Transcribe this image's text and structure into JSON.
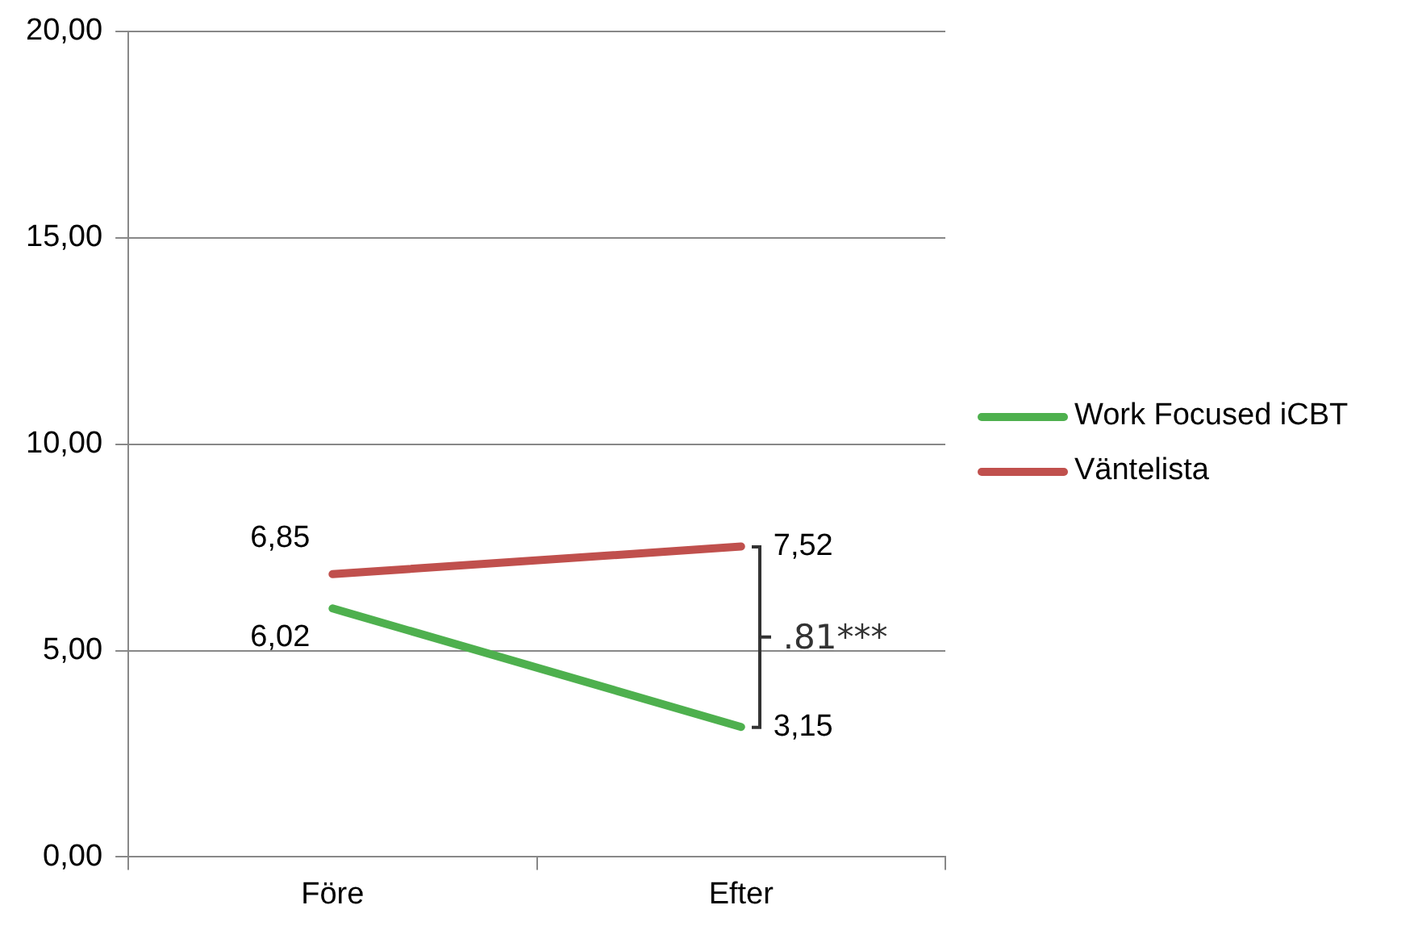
{
  "chart_data": {
    "type": "line",
    "categories": [
      "Före",
      "Efter"
    ],
    "series": [
      {
        "name": "Work Focused iCBT",
        "color": "#4eb04e",
        "values": [
          6.02,
          3.15
        ],
        "value_labels": [
          "6,02",
          "3,15"
        ]
      },
      {
        "name": "Väntelista",
        "color": "#c0504d",
        "values": [
          6.85,
          7.52
        ],
        "value_labels": [
          "6,85",
          "7,52"
        ]
      }
    ],
    "ylim": [
      0,
      20
    ],
    "yticks": [
      {
        "value": 0,
        "label": "0,00"
      },
      {
        "value": 5,
        "label": "5,00"
      },
      {
        "value": 10,
        "label": "10,00"
      },
      {
        "value": 15,
        "label": "15,00"
      },
      {
        "value": 20,
        "label": "20,00"
      }
    ],
    "grid": "y",
    "legend": "right",
    "marker": "none",
    "line_style": "solid",
    "annotations": [
      ".81***"
    ]
  }
}
